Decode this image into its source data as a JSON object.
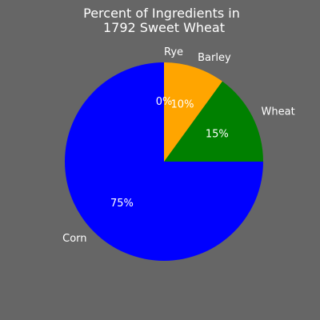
{
  "background": "#666666",
  "chart_data": {
    "type": "pie",
    "title_lines": [
      "Percent of Ingredients in",
      "1792 Sweet Wheat"
    ],
    "slices": [
      {
        "label": "Wheat",
        "value": 15,
        "pct_label": "15%",
        "color": "#008000"
      },
      {
        "label": "Barley",
        "value": 10,
        "pct_label": "10%",
        "color": "#ffa500"
      },
      {
        "label": "Rye",
        "value": 0,
        "pct_label": "0%",
        "color": "#ff0000"
      },
      {
        "label": "Corn",
        "value": 75,
        "pct_label": "75%",
        "color": "#0000ff"
      }
    ],
    "direction": "counterclockwise-in-image-from-east"
  }
}
